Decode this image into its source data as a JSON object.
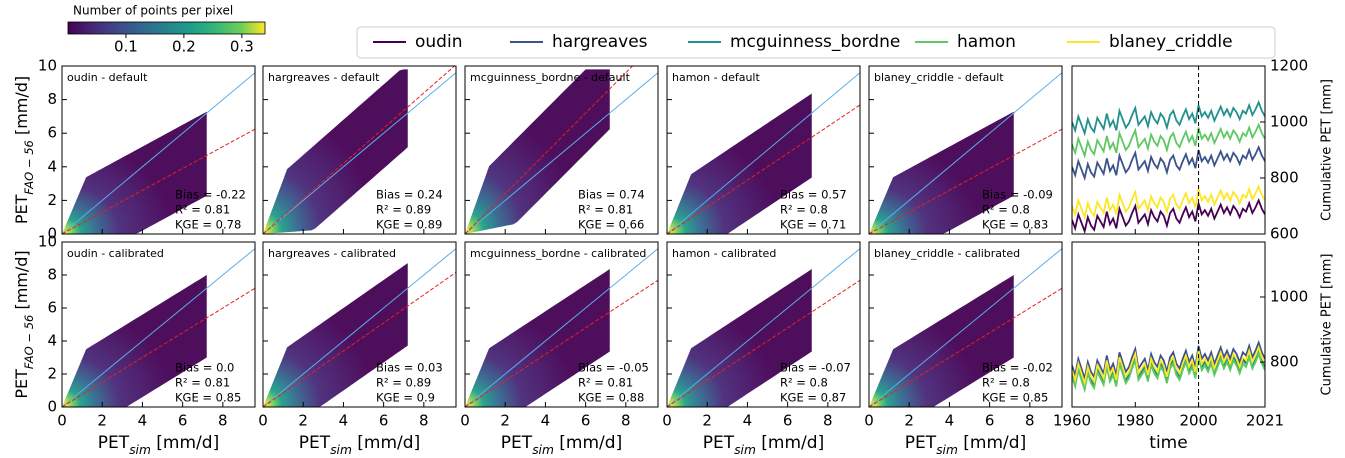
{
  "colorbar": {
    "title": "Number of points per pixel",
    "lim": [
      0,
      0.34
    ],
    "ticks": [
      0.1,
      0.2,
      0.3
    ]
  },
  "chart_data": [
    {
      "type": "scatter",
      "title": "oudin - default",
      "annotations": [
        "Bias = -0.22",
        "R² = 0.81",
        "KGE = 0.78"
      ],
      "xlim": [
        0,
        9.6
      ],
      "ylim": [
        0,
        10
      ],
      "xticks": [
        0,
        2,
        4,
        6,
        8
      ],
      "yticks": [
        0,
        2,
        4,
        6,
        8,
        10
      ],
      "ylabel": [
        "PET",
        "FAO − 56",
        " [mm/d]"
      ],
      "fit_slope": 0.65
    },
    {
      "type": "scatter",
      "title": "hargreaves - default",
      "annotations": [
        "Bias = 0.24",
        "R² = 0.89",
        "KGE = 0.89"
      ],
      "xlim": [
        0,
        9.6
      ],
      "ylim": [
        0,
        10
      ],
      "xticks": [
        0,
        2,
        4,
        6,
        8
      ],
      "yticks": [
        0,
        2,
        4,
        6,
        8,
        10
      ],
      "fit_slope": 1.05
    },
    {
      "type": "scatter",
      "title": "mcguinness_bordne - default",
      "annotations": [
        "Bias = 0.74",
        "R² = 0.81",
        "KGE = 0.66"
      ],
      "xlim": [
        0,
        9.6
      ],
      "ylim": [
        0,
        10
      ],
      "xticks": [
        0,
        2,
        4,
        6,
        8
      ],
      "yticks": [
        0,
        2,
        4,
        6,
        8,
        10
      ],
      "fit_slope": 1.2
    },
    {
      "type": "scatter",
      "title": "hamon - default",
      "annotations": [
        "Bias = 0.57",
        "R² = 0.8",
        "KGE = 0.71"
      ],
      "xlim": [
        0,
        9.6
      ],
      "ylim": [
        0,
        10
      ],
      "xticks": [
        0,
        2,
        4,
        6,
        8
      ],
      "yticks": [
        0,
        2,
        4,
        6,
        8,
        10
      ],
      "fit_slope": 0.8
    },
    {
      "type": "scatter",
      "title": "blaney_criddle - default",
      "annotations": [
        "Bias = -0.09",
        "R² = 0.8",
        "KGE = 0.83"
      ],
      "xlim": [
        0,
        9.6
      ],
      "ylim": [
        0,
        10
      ],
      "xticks": [
        0,
        2,
        4,
        6,
        8
      ],
      "yticks": [
        0,
        2,
        4,
        6,
        8,
        10
      ],
      "fit_slope": 0.65
    },
    {
      "type": "line",
      "xlim": [
        1960,
        2021
      ],
      "xticks": [
        1960,
        1980,
        2000,
        2021
      ],
      "y2lim": [
        600,
        1200
      ],
      "y2ticks": [
        600,
        800,
        1000,
        1200
      ],
      "y2label": "Cumulative PET [mm]",
      "vline": 2000,
      "x": [
        1960,
        1961,
        1962,
        1963,
        1964,
        1965,
        1966,
        1967,
        1968,
        1969,
        1970,
        1971,
        1972,
        1973,
        1974,
        1975,
        1976,
        1977,
        1978,
        1979,
        1980,
        1981,
        1982,
        1983,
        1984,
        1985,
        1986,
        1987,
        1988,
        1989,
        1990,
        1991,
        1992,
        1993,
        1994,
        1995,
        1996,
        1997,
        1998,
        1999,
        2000,
        2001,
        2002,
        2003,
        2004,
        2005,
        2006,
        2007,
        2008,
        2009,
        2010,
        2011,
        2012,
        2013,
        2014,
        2015,
        2016,
        2017,
        2018,
        2019,
        2020,
        2021
      ],
      "series": [
        {
          "name": "oudin",
          "color": "#440154",
          "axis": "y2",
          "values": [
            650,
            620,
            670,
            640,
            610,
            660,
            630,
            615,
            665,
            645,
            625,
            680,
            635,
            655,
            620,
            690,
            660,
            630,
            645,
            675,
            700,
            640,
            655,
            670,
            635,
            685,
            660,
            645,
            680,
            665,
            630,
            675,
            690,
            655,
            640,
            670,
            695,
            660,
            680,
            645,
            710,
            670,
            685,
            665,
            690,
            655,
            680,
            705,
            675,
            695,
            670,
            700,
            685,
            660,
            690,
            680,
            710,
            675,
            695,
            720,
            690,
            670
          ]
        },
        {
          "name": "hargreaves",
          "color": "#3b528b",
          "axis": "y2",
          "values": [
            840,
            810,
            860,
            830,
            800,
            850,
            820,
            805,
            855,
            835,
            815,
            870,
            825,
            845,
            810,
            880,
            850,
            820,
            835,
            865,
            890,
            830,
            845,
            860,
            825,
            875,
            850,
            835,
            870,
            855,
            820,
            865,
            880,
            845,
            830,
            860,
            885,
            850,
            870,
            835,
            900,
            860,
            875,
            855,
            880,
            845,
            870,
            895,
            865,
            885,
            860,
            890,
            875,
            850,
            880,
            870,
            900,
            865,
            885,
            910,
            880,
            860
          ]
        },
        {
          "name": "mcguinness_bordne",
          "color": "#21918c",
          "axis": "y2",
          "values": [
            1000,
            970,
            1020,
            990,
            960,
            1010,
            980,
            965,
            1015,
            995,
            975,
            1030,
            985,
            1005,
            970,
            1040,
            1010,
            980,
            995,
            1025,
            1050,
            990,
            1005,
            1020,
            985,
            1035,
            1010,
            995,
            1030,
            1015,
            980,
            1025,
            1040,
            1005,
            990,
            1020,
            1045,
            1010,
            1030,
            995,
            1060,
            1020,
            1035,
            1015,
            1040,
            1005,
            1030,
            1055,
            1025,
            1045,
            1020,
            1050,
            1035,
            1010,
            1040,
            1030,
            1060,
            1025,
            1045,
            1070,
            1040,
            1020
          ]
        },
        {
          "name": "hamon",
          "color": "#5ec962",
          "axis": "y2",
          "values": [
            920,
            890,
            940,
            910,
            880,
            930,
            900,
            885,
            935,
            915,
            895,
            950,
            905,
            925,
            890,
            960,
            930,
            900,
            915,
            945,
            970,
            910,
            925,
            940,
            905,
            955,
            930,
            915,
            950,
            935,
            900,
            945,
            960,
            925,
            910,
            940,
            965,
            930,
            950,
            915,
            980,
            940,
            955,
            935,
            960,
            925,
            950,
            975,
            945,
            965,
            940,
            970,
            955,
            930,
            960,
            950,
            980,
            945,
            965,
            990,
            960,
            940
          ]
        },
        {
          "name": "blaney_criddle",
          "color": "#fde725",
          "axis": "y2",
          "values": [
            700,
            670,
            720,
            690,
            660,
            710,
            680,
            665,
            715,
            695,
            675,
            730,
            685,
            705,
            670,
            740,
            710,
            680,
            695,
            725,
            750,
            690,
            705,
            720,
            685,
            735,
            710,
            695,
            730,
            715,
            680,
            725,
            740,
            705,
            690,
            720,
            745,
            710,
            730,
            695,
            760,
            720,
            735,
            715,
            740,
            705,
            730,
            755,
            725,
            745,
            720,
            750,
            735,
            710,
            740,
            730,
            760,
            725,
            745,
            770,
            740,
            720
          ]
        }
      ]
    },
    {
      "type": "scatter",
      "title": "oudin - calibrated",
      "annotations": [
        "Bias = 0.0",
        "R² = 0.81",
        "KGE = 0.85"
      ],
      "xlim": [
        0,
        9.6
      ],
      "ylim": [
        0,
        10
      ],
      "xticks": [
        0,
        2,
        4,
        6,
        8
      ],
      "yticks": [
        0,
        2,
        4,
        6,
        8,
        10
      ],
      "xlabel": [
        "PET",
        "sim",
        " [mm/d]"
      ],
      "ylabel": [
        "PET",
        "FAO − 56",
        " [mm/d]"
      ],
      "fit_slope": 0.75
    },
    {
      "type": "scatter",
      "title": "hargreaves - calibrated",
      "annotations": [
        "Bias = 0.03",
        "R² = 0.89",
        "KGE = 0.9"
      ],
      "xlim": [
        0,
        9.6
      ],
      "ylim": [
        0,
        10
      ],
      "xticks": [
        0,
        2,
        4,
        6,
        8
      ],
      "yticks": [
        0,
        2,
        4,
        6,
        8,
        10
      ],
      "xlabel": [
        "PET",
        "sim",
        " [mm/d]"
      ],
      "fit_slope": 0.85
    },
    {
      "type": "scatter",
      "title": "mcguinness_bordne - calibrated",
      "annotations": [
        "Bias = -0.05",
        "R² = 0.81",
        "KGE = 0.88"
      ],
      "xlim": [
        0,
        9.6
      ],
      "ylim": [
        0,
        10
      ],
      "xticks": [
        0,
        2,
        4,
        6,
        8
      ],
      "yticks": [
        0,
        2,
        4,
        6,
        8,
        10
      ],
      "xlabel": [
        "PET",
        "sim",
        " [mm/d]"
      ],
      "fit_slope": 0.8
    },
    {
      "type": "scatter",
      "title": "hamon - calibrated",
      "annotations": [
        "Bias = -0.07",
        "R² = 0.8",
        "KGE = 0.87"
      ],
      "xlim": [
        0,
        9.6
      ],
      "ylim": [
        0,
        10
      ],
      "xticks": [
        0,
        2,
        4,
        6,
        8
      ],
      "yticks": [
        0,
        2,
        4,
        6,
        8,
        10
      ],
      "xlabel": [
        "PET",
        "sim",
        " [mm/d]"
      ],
      "fit_slope": 0.8
    },
    {
      "type": "scatter",
      "title": "blaney_criddle - calibrated",
      "annotations": [
        "Bias = -0.02",
        "R² = 0.8",
        "KGE = 0.85"
      ],
      "xlim": [
        0,
        9.6
      ],
      "ylim": [
        0,
        10
      ],
      "xticks": [
        0,
        2,
        4,
        6,
        8
      ],
      "yticks": [
        0,
        2,
        4,
        6,
        8,
        10
      ],
      "xlabel": [
        "PET",
        "sim",
        " [mm/d]"
      ],
      "fit_slope": 0.75
    },
    {
      "type": "line",
      "xlim": [
        1960,
        2021
      ],
      "xticks": [
        1960,
        1980,
        2000,
        2021
      ],
      "y2lim": [
        662,
        1169
      ],
      "y2ticks": [
        800,
        1000
      ],
      "y2label": "Cumulative PET [mm]",
      "xlabel": "time",
      "vline": 2000,
      "x": [
        1960,
        1961,
        1962,
        1963,
        1964,
        1965,
        1966,
        1967,
        1968,
        1969,
        1970,
        1971,
        1972,
        1973,
        1974,
        1975,
        1976,
        1977,
        1978,
        1979,
        1980,
        1981,
        1982,
        1983,
        1984,
        1985,
        1986,
        1987,
        1988,
        1989,
        1990,
        1991,
        1992,
        1993,
        1994,
        1995,
        1996,
        1997,
        1998,
        1999,
        2000,
        2001,
        2002,
        2003,
        2004,
        2005,
        2006,
        2007,
        2008,
        2009,
        2010,
        2011,
        2012,
        2013,
        2014,
        2015,
        2016,
        2017,
        2018,
        2019,
        2020,
        2021
      ],
      "series": [
        {
          "name": "oudin",
          "color": "#440154",
          "axis": "y2",
          "values": [
            770,
            740,
            790,
            760,
            730,
            780,
            750,
            735,
            785,
            765,
            745,
            800,
            755,
            775,
            740,
            810,
            780,
            750,
            765,
            795,
            820,
            760,
            775,
            790,
            755,
            805,
            780,
            765,
            800,
            785,
            750,
            795,
            810,
            775,
            760,
            790,
            815,
            780,
            800,
            765,
            830,
            790,
            805,
            785,
            810,
            775,
            800,
            825,
            795,
            815,
            790,
            820,
            805,
            780,
            810,
            800,
            830,
            795,
            815,
            840,
            810,
            790
          ]
        },
        {
          "name": "hargreaves",
          "color": "#3b528b",
          "axis": "y2",
          "values": [
            790,
            760,
            810,
            780,
            750,
            800,
            770,
            755,
            805,
            785,
            765,
            820,
            775,
            795,
            760,
            830,
            800,
            770,
            785,
            815,
            840,
            780,
            795,
            810,
            775,
            825,
            800,
            785,
            820,
            805,
            770,
            815,
            830,
            795,
            780,
            810,
            835,
            800,
            820,
            785,
            850,
            810,
            825,
            805,
            830,
            795,
            820,
            845,
            815,
            835,
            810,
            840,
            825,
            800,
            830,
            820,
            850,
            815,
            835,
            860,
            830,
            810
          ]
        },
        {
          "name": "mcguinness_bordne",
          "color": "#21918c",
          "axis": "y2",
          "values": [
            765,
            735,
            785,
            755,
            725,
            775,
            745,
            730,
            780,
            760,
            740,
            795,
            750,
            770,
            735,
            805,
            775,
            745,
            760,
            790,
            815,
            755,
            770,
            785,
            750,
            800,
            775,
            760,
            795,
            780,
            745,
            790,
            805,
            770,
            755,
            785,
            810,
            775,
            795,
            760,
            825,
            785,
            800,
            780,
            805,
            770,
            795,
            820,
            790,
            810,
            785,
            815,
            800,
            775,
            805,
            795,
            825,
            790,
            810,
            835,
            805,
            785
          ]
        },
        {
          "name": "hamon",
          "color": "#5ec962",
          "axis": "y2",
          "values": [
            755,
            725,
            775,
            745,
            715,
            765,
            735,
            720,
            770,
            750,
            730,
            785,
            740,
            760,
            725,
            795,
            765,
            735,
            750,
            780,
            805,
            745,
            760,
            775,
            740,
            790,
            765,
            750,
            785,
            770,
            735,
            780,
            795,
            760,
            745,
            775,
            800,
            765,
            785,
            750,
            815,
            775,
            790,
            770,
            795,
            760,
            785,
            810,
            780,
            800,
            775,
            805,
            790,
            765,
            795,
            785,
            815,
            780,
            800,
            825,
            795,
            775
          ]
        },
        {
          "name": "blaney_criddle",
          "color": "#fde725",
          "axis": "y2",
          "values": [
            775,
            745,
            795,
            765,
            735,
            785,
            755,
            740,
            790,
            770,
            750,
            805,
            760,
            780,
            745,
            815,
            785,
            755,
            770,
            800,
            825,
            765,
            780,
            795,
            760,
            810,
            785,
            770,
            805,
            790,
            755,
            800,
            815,
            780,
            765,
            795,
            820,
            785,
            805,
            770,
            835,
            795,
            810,
            790,
            815,
            780,
            805,
            830,
            800,
            820,
            795,
            825,
            810,
            785,
            815,
            805,
            835,
            800,
            820,
            845,
            815,
            795
          ]
        }
      ]
    }
  ]
}
